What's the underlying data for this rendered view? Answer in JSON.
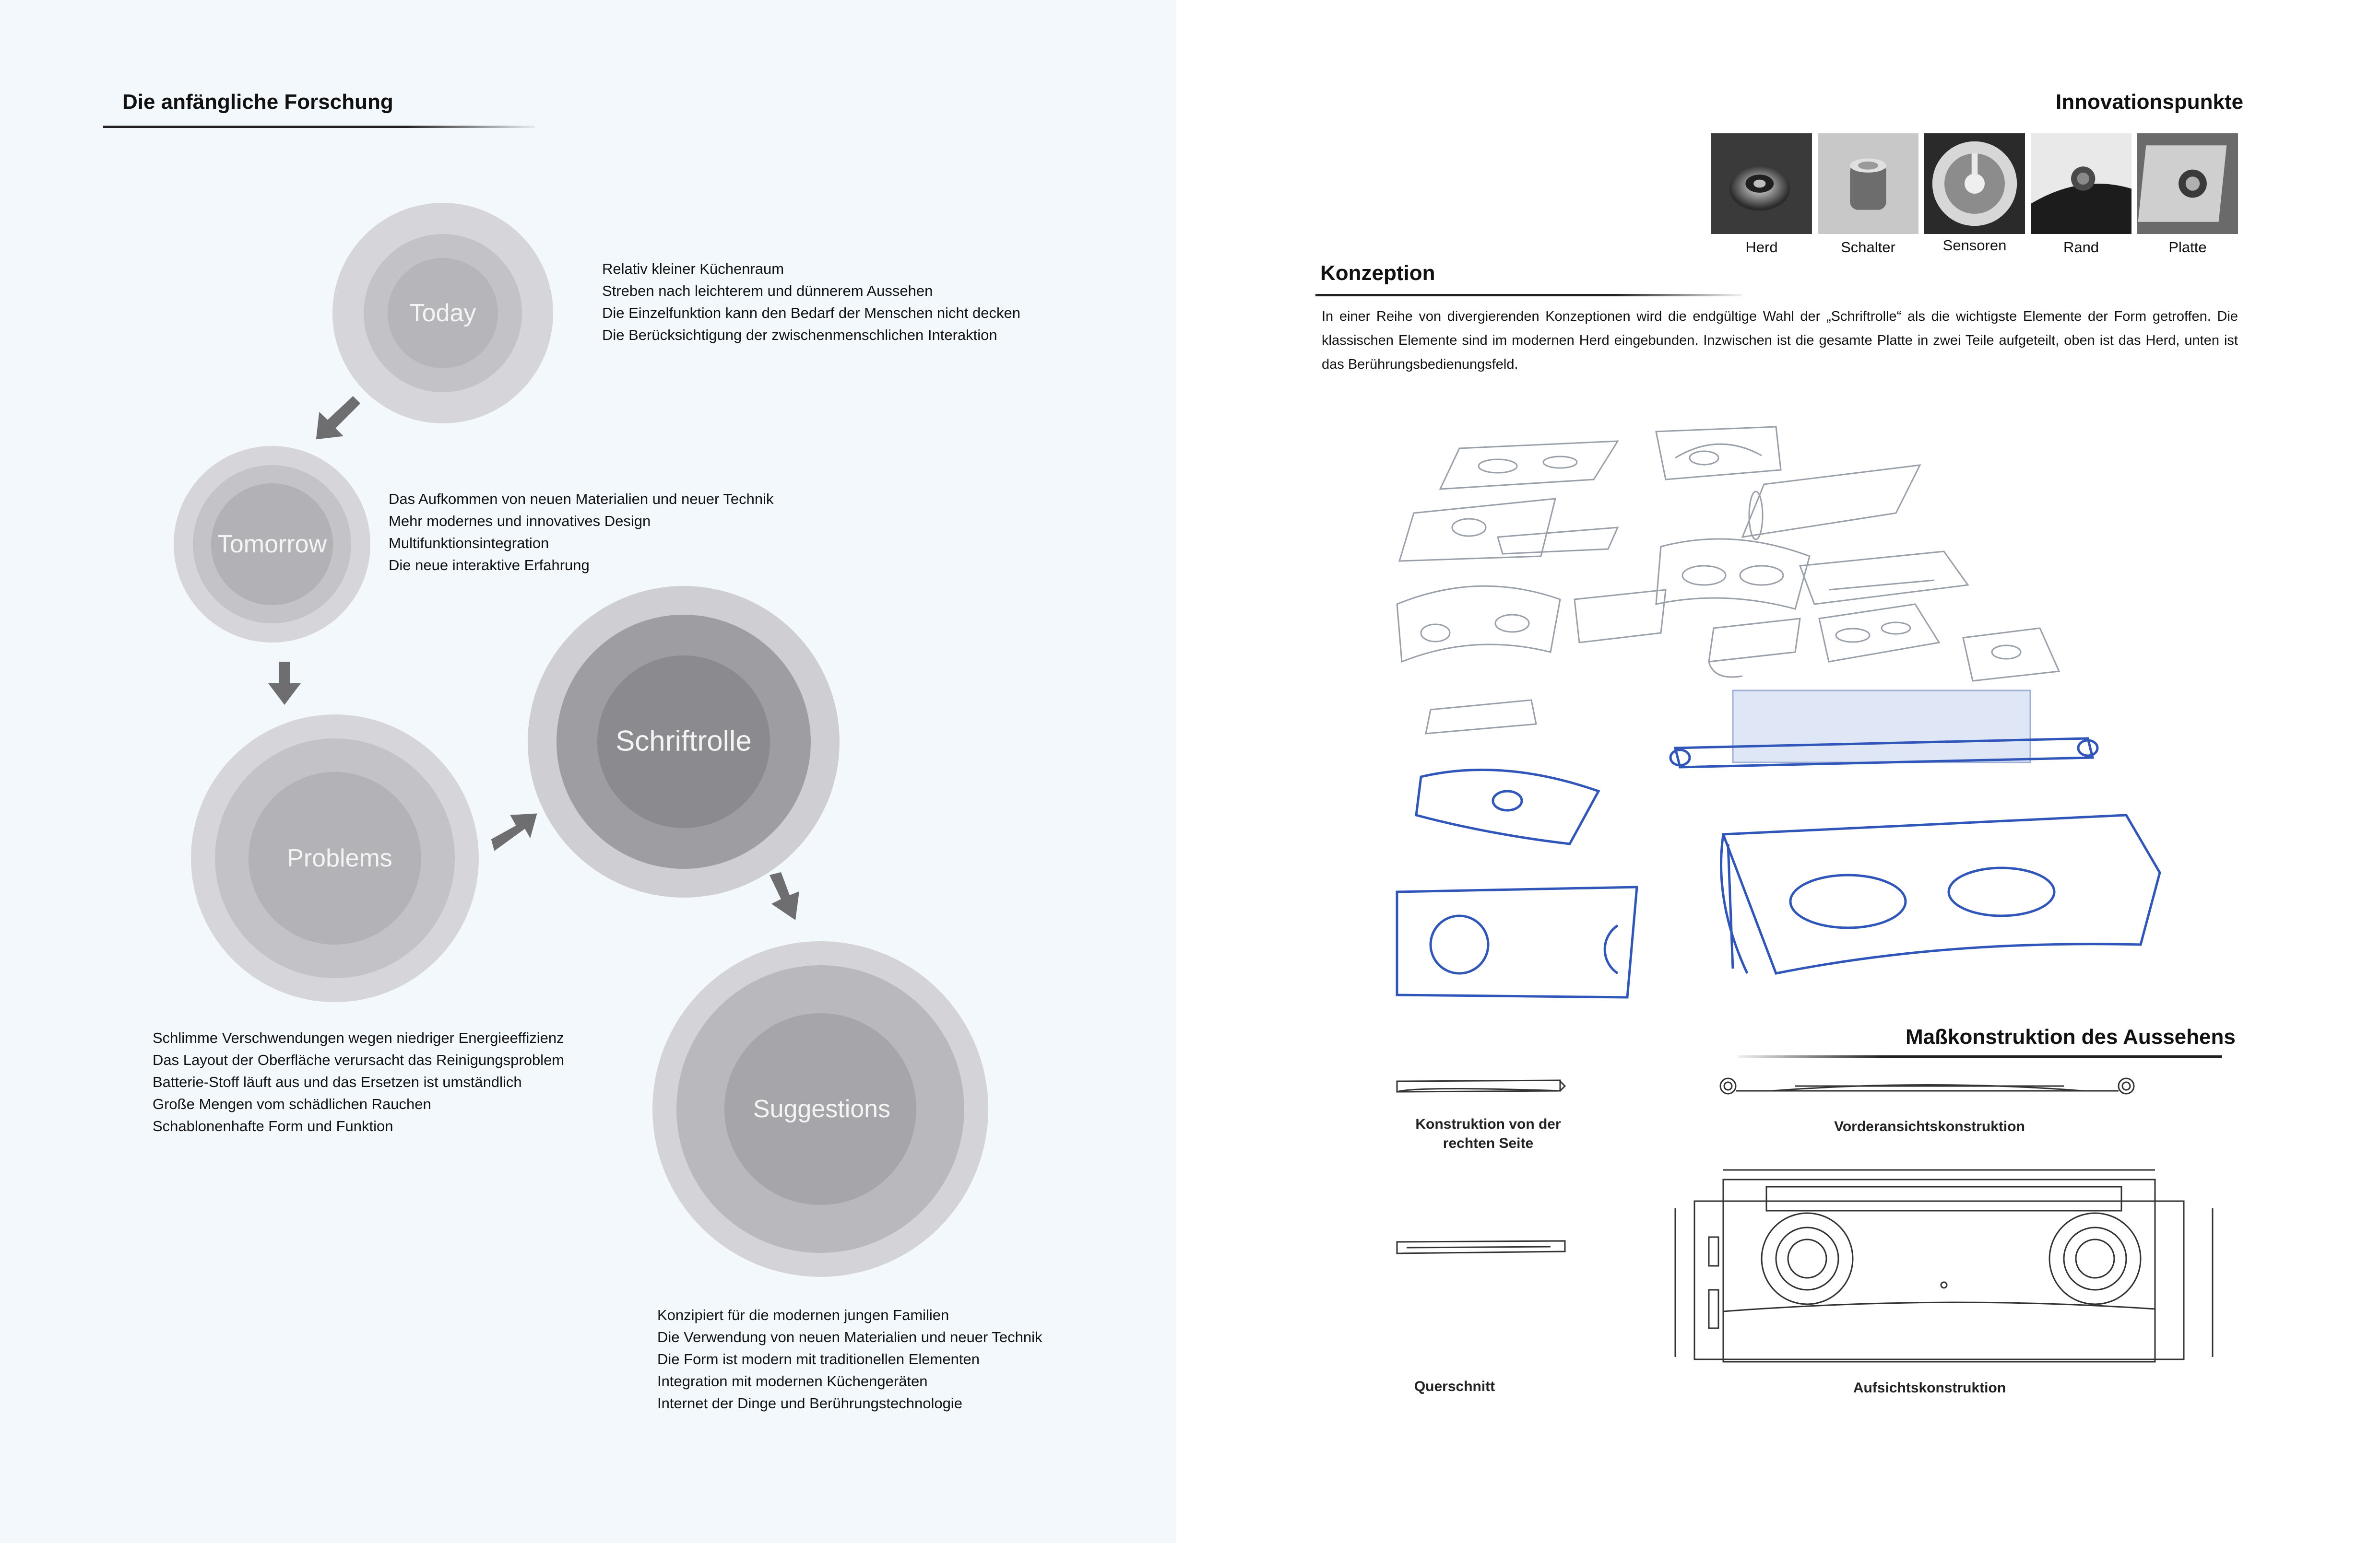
{
  "left": {
    "heading": "Die anfängliche Forschung",
    "circles": {
      "today": "Today",
      "tomorrow": "Tomorrow",
      "problems": "Problems",
      "schriftrolle": "Schriftrolle",
      "suggestions": "Suggestions"
    },
    "today_lines": [
      "Relativ kleiner Küchenraum",
      "Streben nach leichterem und dünnerem Aussehen",
      "Die Einzelfunktion kann den Bedarf der Menschen nicht decken",
      "Die Berücksichtigung der zwischenmenschlichen Interaktion"
    ],
    "tomorrow_lines": [
      "Das Aufkommen von neuen Materialien und neuer Technik",
      "Mehr modernes und innovatives Design",
      "Multifunktionsintegration",
      "Die neue interaktive Erfahrung"
    ],
    "problems_lines": [
      "Schlimme Verschwendungen wegen niedriger Energieeffizienz",
      "Das Layout der Oberfläche verursacht das Reinigungsproblem",
      "Batterie-Stoff läuft aus und das Ersetzen ist umständlich",
      "Große Mengen vom schädlichen Rauchen",
      "Schablonenhafte Form und Funktion"
    ],
    "suggestions_lines": [
      "Konzipiert für die modernen jungen Familien",
      "Die Verwendung von neuen Materialien und neuer Technik",
      "Die Form ist modern mit traditionellen Elementen",
      "Integration mit modernen Küchengeräten",
      "Internet der Dinge und Berührungstechnologie"
    ]
  },
  "right": {
    "innovation_heading": "Innovationspunkte",
    "innovation_items": [
      "Herd",
      "Schalter",
      "Sensoren",
      "Rand",
      "Platte"
    ],
    "konzeption_heading": "Konzeption",
    "konzeption_text": "In einer Reihe von divergierenden Konzeptionen wird die endgültige Wahl der „Schriftrolle“ als die wichtigste Elemente der Form getroffen. Die klassischen Elemente sind im modernen Herd eingebunden. Inzwischen ist die gesamte Platte in zwei Teile aufgeteilt, oben ist das Herd, unten ist das Berührungsbedienungsfeld.",
    "mass_heading": "Maßkonstruktion des Aussehens",
    "drawings": {
      "side_label": "Konstruktion von der rechten Seite",
      "front_label": "Vorderansichtskonstruktion",
      "section_label": "Querschnitt",
      "top_label": "Aufsichtskonstruktion"
    }
  },
  "colors": {
    "left_bg": "#f2f8fc",
    "circle_light": "#d3d2d6",
    "circle_mid": "#bdbcc1",
    "circle_dark": "#a8a7ac",
    "arrow": "#6e6e70",
    "sketch_blue": "#2f56b8"
  }
}
